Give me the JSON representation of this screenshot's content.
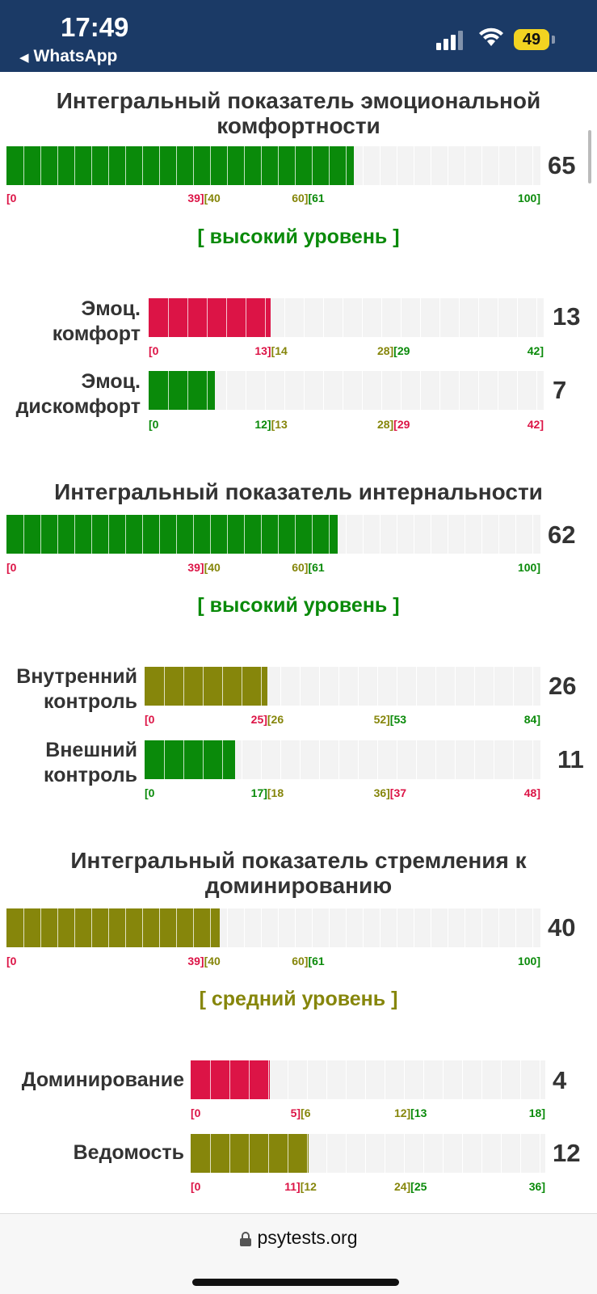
{
  "status_bar": {
    "time": "17:49",
    "back_label": "WhatsApp",
    "battery": "49"
  },
  "colors": {
    "green": "#0a8a0a",
    "red": "#dc1446",
    "olive": "#86860b",
    "track": "#f3f3f3"
  },
  "sections": [
    {
      "title": "Интегральный показатель эмоциональной комфортности",
      "value": "65",
      "fraction": 0.65,
      "color": "green",
      "scale": [
        "[0",
        "39][40",
        "60][61",
        "100]"
      ],
      "scale_colors": [
        "red",
        "olive",
        "green"
      ],
      "level": "[ высокий уровень ]",
      "level_color": "green",
      "subs": [
        {
          "label_lines": [
            "Эмоц.",
            "комфорт"
          ],
          "value": "13",
          "fraction": 0.3095,
          "color": "red",
          "scale": [
            "[0",
            "13][14",
            "28][29",
            "42]"
          ],
          "scale_colors": [
            "red",
            "olive",
            "green"
          ]
        },
        {
          "label_lines": [
            "Эмоц.",
            "дискомфорт"
          ],
          "value": "7",
          "fraction": 0.1667,
          "color": "green",
          "scale": [
            "[0",
            "12][13",
            "28][29",
            "42]"
          ],
          "scale_colors": [
            "green",
            "olive",
            "red"
          ]
        }
      ]
    },
    {
      "title": "Интегральный показатель интернальности",
      "value": "62",
      "fraction": 0.62,
      "color": "green",
      "scale": [
        "[0",
        "39][40",
        "60][61",
        "100]"
      ],
      "scale_colors": [
        "red",
        "olive",
        "green"
      ],
      "level": "[ высокий уровень ]",
      "level_color": "green",
      "subs": [
        {
          "label_lines": [
            "Внутренний",
            "контроль"
          ],
          "value": "26",
          "fraction": 0.3095,
          "color": "olive",
          "scale": [
            "[0",
            "25][26",
            "52][53",
            "84]"
          ],
          "scale_colors": [
            "red",
            "olive",
            "green"
          ]
        },
        {
          "label_lines": [
            "Внешний",
            "контроль"
          ],
          "value": "11",
          "fraction": 0.2292,
          "color": "green",
          "scale": [
            "[0",
            "17][18",
            "36][37",
            "48]"
          ],
          "scale_colors": [
            "green",
            "olive",
            "red"
          ]
        }
      ]
    },
    {
      "title": "Интегральный показатель стремления к доминированию",
      "value": "40",
      "fraction": 0.4,
      "color": "olive",
      "scale": [
        "[0",
        "39][40",
        "60][61",
        "100]"
      ],
      "scale_colors": [
        "red",
        "olive",
        "green"
      ],
      "level": "[ средний уровень ]",
      "level_color": "olive",
      "subs": [
        {
          "label_lines": [
            "Доминирование"
          ],
          "value": "4",
          "fraction": 0.2222,
          "color": "red",
          "scale": [
            "[0",
            "5][6",
            "12][13",
            "18]"
          ],
          "scale_colors": [
            "red",
            "olive",
            "green"
          ]
        },
        {
          "label_lines": [
            "Ведомость"
          ],
          "value": "12",
          "fraction": 0.3333,
          "color": "olive",
          "scale": [
            "[0",
            "11][12",
            "24][25",
            "36]"
          ],
          "scale_colors": [
            "red",
            "olive",
            "green"
          ]
        }
      ]
    }
  ],
  "browser": {
    "url": "psytests.org"
  }
}
